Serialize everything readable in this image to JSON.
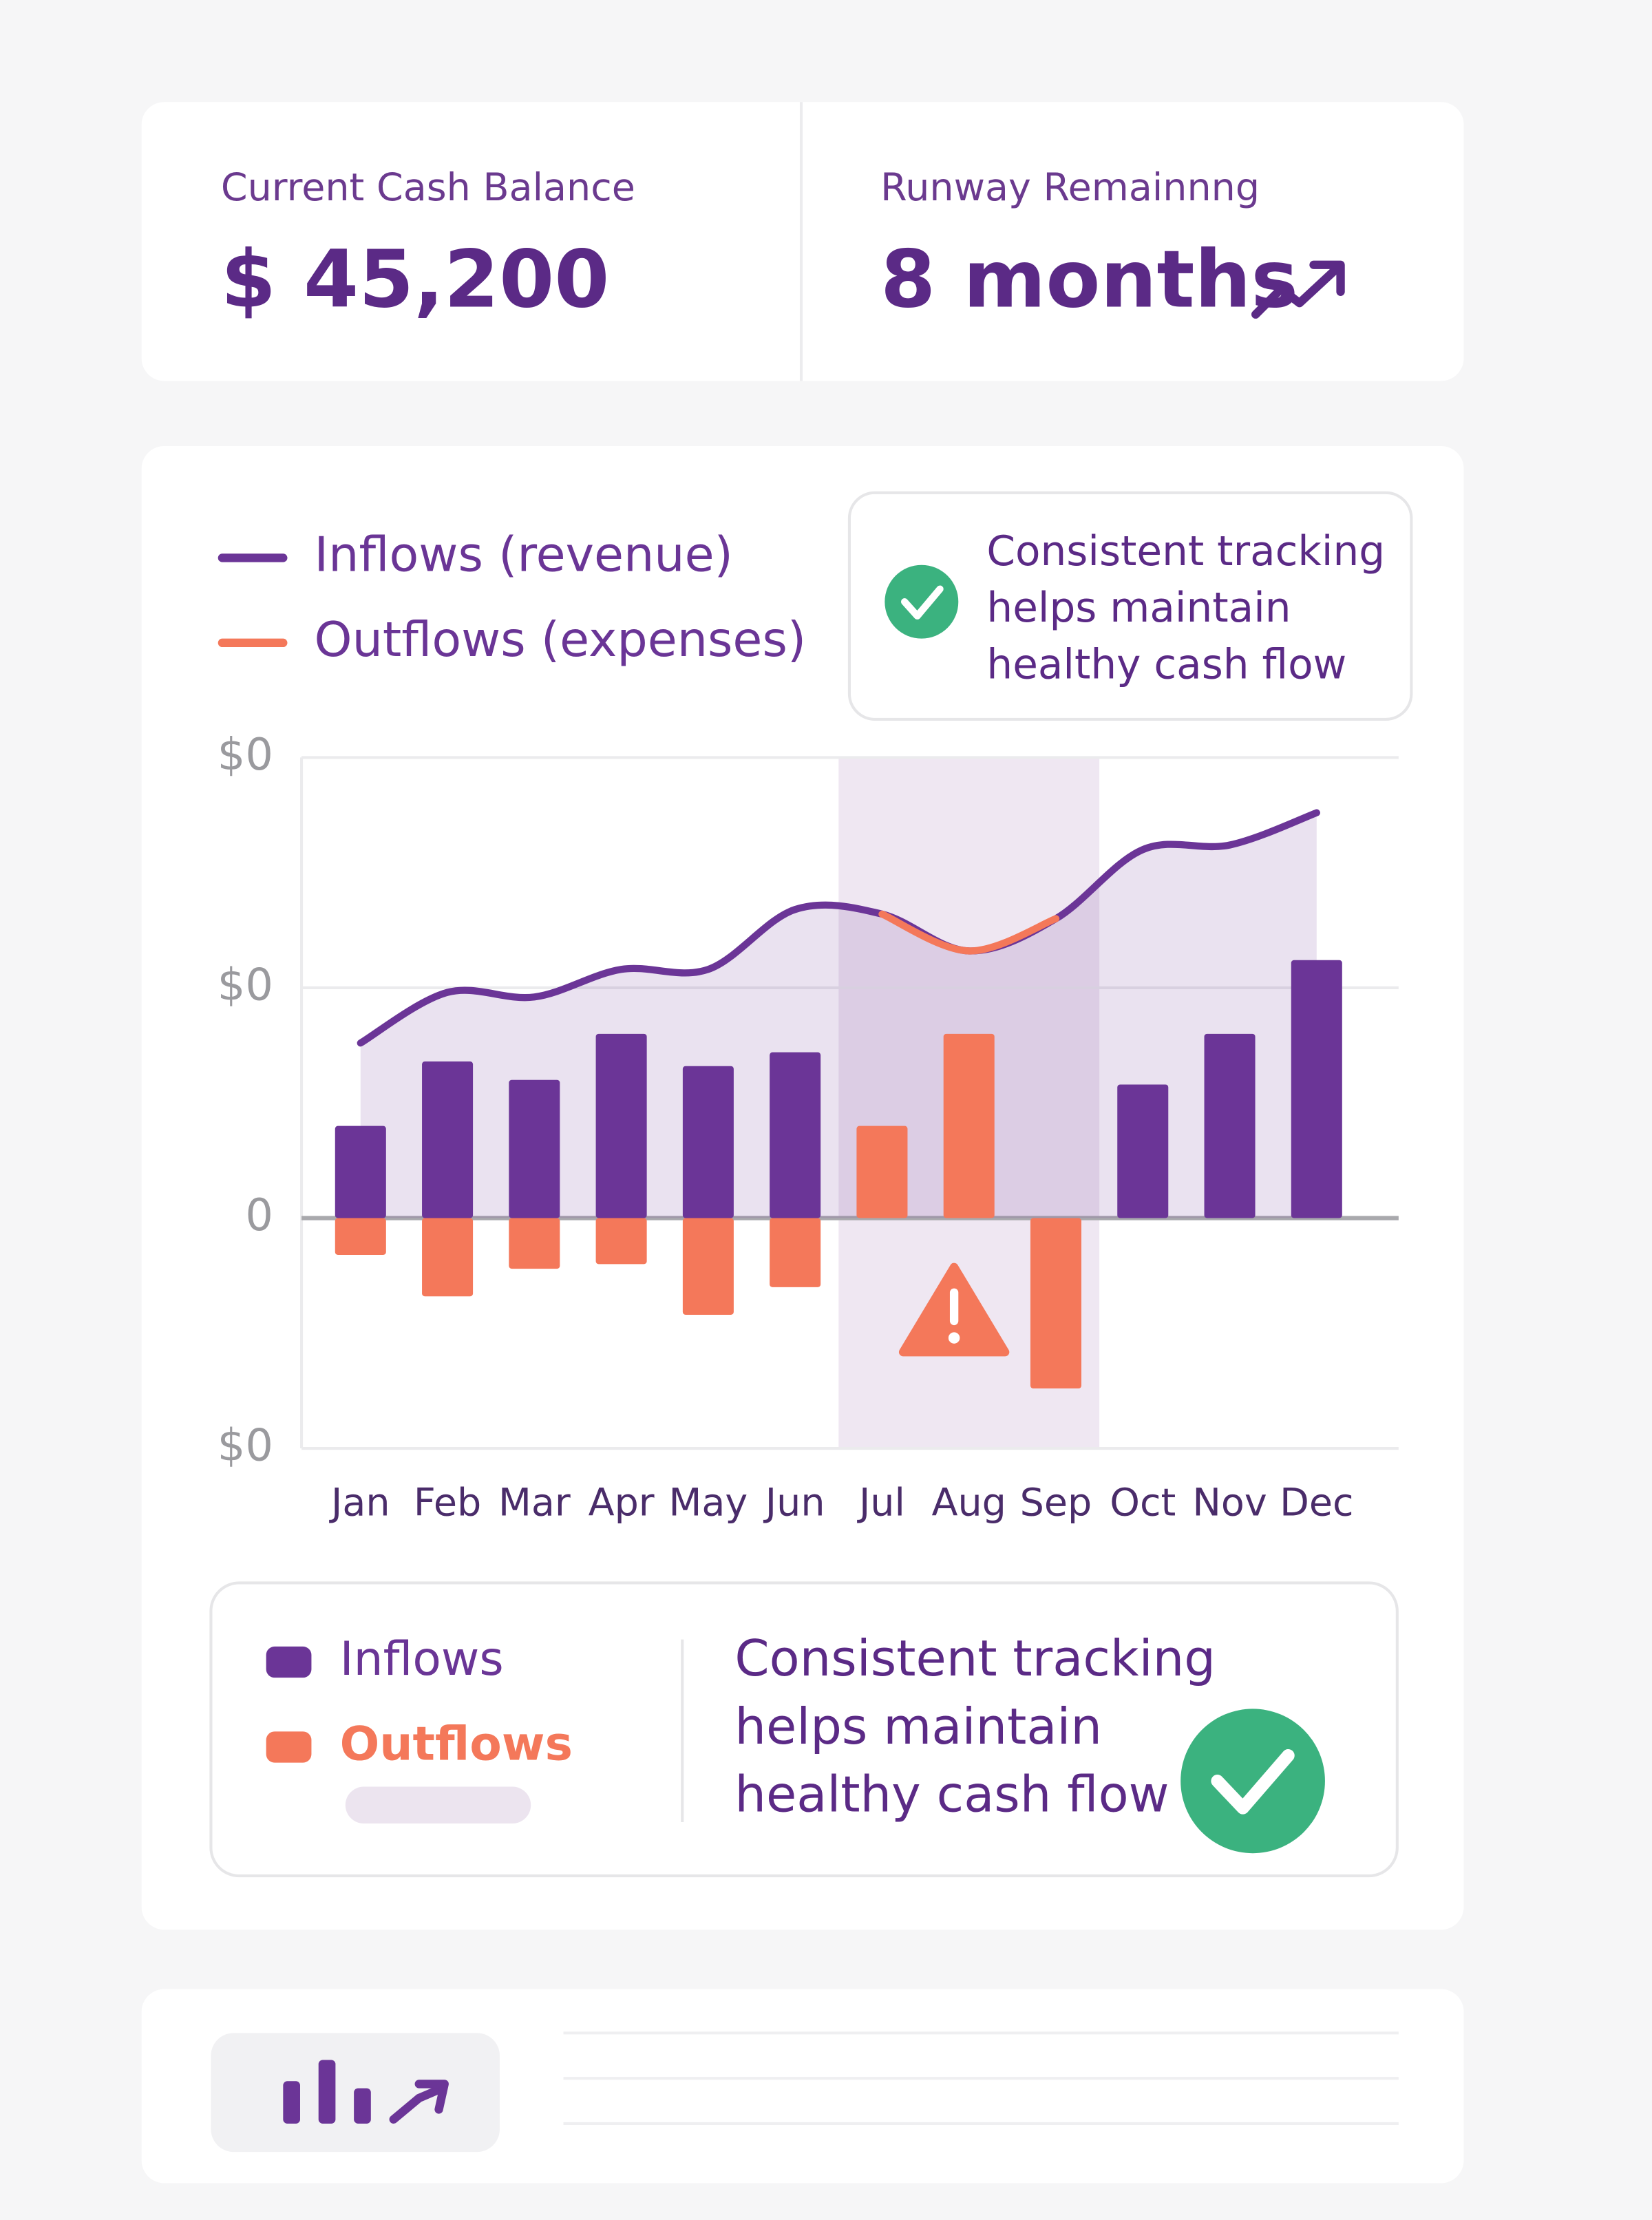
{
  "kpis": [
    {
      "label": "Current Cash Balance",
      "value": "$ 45,200"
    },
    {
      "label": "Runway Remainnng",
      "value": "8 months"
    }
  ],
  "chart_data": {
    "type": "bar",
    "categories": [
      "Jan",
      "Feb",
      "Mar",
      "Apr",
      "May",
      "Jun",
      "Jul",
      "Aug",
      "Sep",
      "Oct",
      "Nov",
      "Dec"
    ],
    "series": [
      {
        "name": "Inflows",
        "color": "#6b3597",
        "values": [
          20,
          34,
          30,
          40,
          33,
          36,
          null,
          null,
          null,
          29,
          40,
          56
        ]
      },
      {
        "name": "Outflows",
        "color": "#f4785a",
        "values": [
          -8,
          -17,
          -11,
          -10,
          -21,
          -15,
          20,
          40,
          -37,
          null,
          null,
          null
        ]
      }
    ],
    "line": {
      "color": "#6b3597",
      "highlight_color": "#f4785a",
      "values": [
        38,
        49,
        48,
        54,
        54,
        67,
        66,
        58,
        65,
        80,
        81,
        88
      ]
    },
    "legend": [
      {
        "label": "Inflows (revenue)",
        "color": "#6b3597"
      },
      {
        "label": "Outflows (expenses)",
        "color": "#f4785a"
      }
    ],
    "highlight": [
      6,
      8
    ],
    "ylim": [
      -50,
      100
    ],
    "yticks": [
      {
        "value": -50,
        "label": "$0"
      },
      0,
      {
        "value": 50,
        "label": "$0"
      },
      {
        "value": 100,
        "label": "$0"
      }
    ],
    "grid": true,
    "callout": [
      "Consistent tracking",
      "helps maintain",
      "healthy cash flow"
    ]
  },
  "summary": {
    "callout": [
      "Consistent tracking",
      "helps maintain",
      "healthy cash flow"
    ]
  }
}
